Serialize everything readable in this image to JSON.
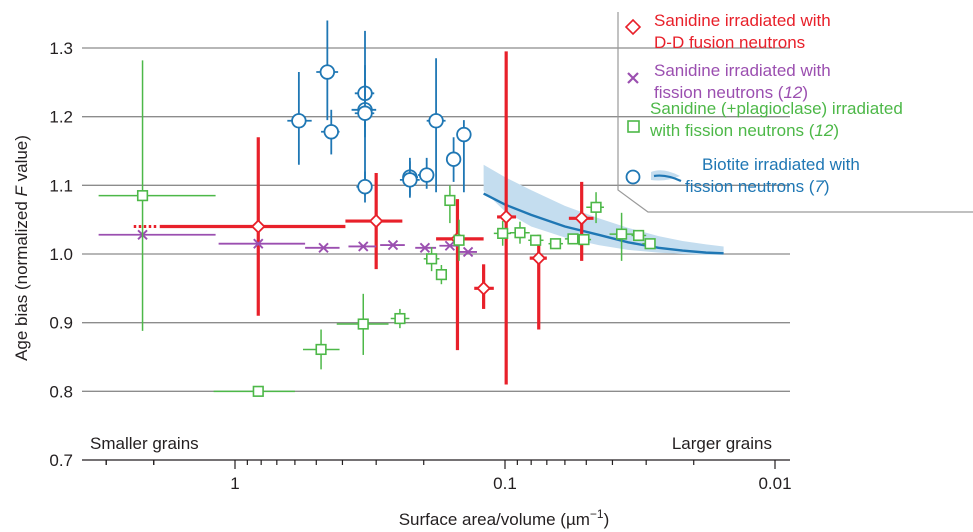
{
  "chart_data": {
    "type": "scatter",
    "xlabel": "Surface area/volume (µm⁻¹)",
    "ylabel": "Age bias (normalized F value)",
    "x_scale": "log",
    "x_reversed": true,
    "xlim": [
      3.2,
      0.0085
    ],
    "ylim": [
      0.7,
      1.35
    ],
    "x_ticks": [
      {
        "value": 1,
        "label": "1"
      },
      {
        "value": 0.1,
        "label": "0.1"
      },
      {
        "value": 0.01,
        "label": "0.01"
      }
    ],
    "y_ticks": [
      0.7,
      0.8,
      0.9,
      1.0,
      1.1,
      1.2,
      1.3
    ],
    "y_tick_labels": [
      "0.7",
      "0.8",
      "0.9",
      "1.0",
      "1.1",
      "1.2",
      "1.3"
    ],
    "grid": "horizontal",
    "annotations": {
      "left": "Smaller grains",
      "right": "Larger grains"
    },
    "legend": {
      "placement": "top-right",
      "entries": [
        {
          "lines": [
            "Sanidine irradiated with",
            "D-D fusion neutrons"
          ],
          "color": "#e8202a",
          "marker": "diamond"
        },
        {
          "lines": [
            "Sanidine irradiated with",
            "fission neutrons (12)"
          ],
          "color": "#9b4fb0",
          "marker": "x"
        },
        {
          "lines": [
            "Sanidine (+plagioclase) irradiated",
            "with fission neutrons (12)"
          ],
          "color": "#4db848",
          "marker": "square"
        },
        {
          "lines": [
            "Biotite irradiated with",
            "fission neutrons (7)"
          ],
          "color": "#1f77b4",
          "marker": "circle"
        }
      ]
    },
    "series": [
      {
        "name": "Sanidine irradiated with D-D fusion neutrons",
        "color": "#e8202a",
        "marker": "diamond",
        "points": [
          {
            "x": 0.82,
            "y": 1.04,
            "x_lo": 1.9,
            "x_hi": 0.39,
            "y_lo": 0.91,
            "y_hi": 1.17
          },
          {
            "x": 0.3,
            "y": 1.048,
            "x_lo": 0.39,
            "x_hi": 0.24,
            "y_lo": 0.978,
            "y_hi": 1.118
          },
          {
            "x": 0.15,
            "y": 1.022,
            "x_lo": 0.18,
            "x_hi": 0.12,
            "y_lo": 0.86,
            "y_hi": 1.08
          },
          {
            "x": 0.12,
            "y": 0.95,
            "x_lo": 0.13,
            "x_hi": 0.11,
            "y_lo": 0.92,
            "y_hi": 0.985
          },
          {
            "x": 0.099,
            "y": 1.054,
            "x_lo": 0.107,
            "x_hi": 0.091,
            "y_lo": 0.81,
            "y_hi": 1.295
          },
          {
            "x": 0.075,
            "y": 0.994,
            "x_lo": 0.081,
            "x_hi": 0.07,
            "y_lo": 0.89,
            "y_hi": 1.028
          },
          {
            "x": 0.052,
            "y": 1.052,
            "x_lo": 0.058,
            "x_hi": 0.047,
            "y_lo": 0.99,
            "y_hi": 1.105
          }
        ]
      },
      {
        "name": "Sanidine irradiated with fission neutrons (12)",
        "color": "#9b4fb0",
        "marker": "x",
        "points": [
          {
            "x": 2.2,
            "y": 1.028,
            "x_lo": 3.2,
            "x_hi": 1.18
          },
          {
            "x": 0.82,
            "y": 1.015,
            "x_lo": 1.15,
            "x_hi": 0.55
          },
          {
            "x": 0.47,
            "y": 1.009,
            "x_lo": 0.55,
            "x_hi": 0.41
          },
          {
            "x": 0.335,
            "y": 1.011,
            "x_lo": 0.38,
            "x_hi": 0.3
          },
          {
            "x": 0.26,
            "y": 1.013,
            "x_lo": 0.29,
            "x_hi": 0.235
          },
          {
            "x": 0.198,
            "y": 1.009,
            "x_lo": 0.215,
            "x_hi": 0.18
          },
          {
            "x": 0.16,
            "y": 1.012,
            "x_lo": 0.175,
            "x_hi": 0.148
          },
          {
            "x": 0.137,
            "y": 1.003,
            "x_lo": 0.148,
            "x_hi": 0.127
          }
        ]
      },
      {
        "name": "Sanidine (+plagioclase) irradiated with fission neutrons (12)",
        "color": "#4db848",
        "marker": "square",
        "points": [
          {
            "x": 2.2,
            "y": 1.085,
            "x_lo": 3.2,
            "x_hi": 1.18,
            "y_lo": 0.888,
            "y_hi": 1.282
          },
          {
            "x": 0.82,
            "y": 0.8,
            "x_lo": 1.2,
            "x_hi": 0.6
          },
          {
            "x": 0.48,
            "y": 0.861,
            "x_lo": 0.56,
            "x_hi": 0.41,
            "y_lo": 0.832,
            "y_hi": 0.89
          },
          {
            "x": 0.335,
            "y": 0.898,
            "x_lo": 0.42,
            "x_hi": 0.27,
            "y_lo": 0.853,
            "y_hi": 0.942
          },
          {
            "x": 0.245,
            "y": 0.906,
            "x_lo": 0.265,
            "x_hi": 0.226,
            "y_lo": 0.892,
            "y_hi": 0.92
          },
          {
            "x": 0.187,
            "y": 0.993,
            "x_lo": 0.2,
            "x_hi": 0.175,
            "y_lo": 0.975,
            "y_hi": 1.01
          },
          {
            "x": 0.172,
            "y": 0.97,
            "x_lo": 0.178,
            "x_hi": 0.166,
            "y_lo": 0.956,
            "y_hi": 0.984
          },
          {
            "x": 0.16,
            "y": 1.078,
            "x_lo": 0.165,
            "x_hi": 0.155,
            "y_lo": 1.045,
            "y_hi": 1.1
          },
          {
            "x": 0.148,
            "y": 1.02,
            "x_lo": 0.155,
            "x_hi": 0.142,
            "y_lo": 0.99,
            "y_hi": 1.05
          },
          {
            "x": 0.102,
            "y": 1.03,
            "x_lo": 0.11,
            "x_hi": 0.095,
            "y_lo": 1.012,
            "y_hi": 1.048
          },
          {
            "x": 0.088,
            "y": 1.031,
            "x_lo": 0.096,
            "x_hi": 0.081,
            "y_lo": 1.015,
            "y_hi": 1.047
          },
          {
            "x": 0.077,
            "y": 1.02,
            "x_lo": 0.082,
            "x_hi": 0.072
          },
          {
            "x": 0.065,
            "y": 1.015,
            "x_lo": 0.069,
            "x_hi": 0.061
          },
          {
            "x": 0.056,
            "y": 1.022,
            "x_lo": 0.06,
            "x_hi": 0.052
          },
          {
            "x": 0.051,
            "y": 1.021,
            "x_lo": 0.054,
            "x_hi": 0.048
          },
          {
            "x": 0.046,
            "y": 1.068,
            "x_lo": 0.05,
            "x_hi": 0.043,
            "y_lo": 1.045,
            "y_hi": 1.09
          },
          {
            "x": 0.037,
            "y": 1.029,
            "x_lo": 0.041,
            "x_hi": 0.033,
            "y_lo": 0.99,
            "y_hi": 1.06
          },
          {
            "x": 0.032,
            "y": 1.027,
            "x_lo": 0.034,
            "x_hi": 0.03
          },
          {
            "x": 0.029,
            "y": 1.015,
            "x_lo": 0.031,
            "x_hi": 0.028
          }
        ]
      },
      {
        "name": "Biotite irradiated with fission neutrons (7)",
        "color": "#1f77b4",
        "marker": "circle",
        "points": [
          {
            "x": 0.58,
            "y": 1.194,
            "x_lo": 0.64,
            "x_hi": 0.52,
            "y_lo": 1.13,
            "y_hi": 1.265
          },
          {
            "x": 0.455,
            "y": 1.265,
            "x_lo": 0.5,
            "x_hi": 0.415,
            "y_lo": 1.195,
            "y_hi": 1.34
          },
          {
            "x": 0.44,
            "y": 1.178,
            "x_lo": 0.48,
            "x_hi": 0.41,
            "y_lo": 1.145,
            "y_hi": 1.21
          },
          {
            "x": 0.33,
            "y": 1.234,
            "x_lo": 0.36,
            "x_hi": 0.305,
            "y_lo": 1.185,
            "y_hi": 1.275
          },
          {
            "x": 0.33,
            "y": 1.21,
            "x_lo": 0.37,
            "x_hi": 0.3,
            "y_lo": 1.17,
            "y_hi": 1.255
          },
          {
            "x": 0.33,
            "y": 1.205,
            "x_lo": 0.36,
            "x_hi": 0.305,
            "y_lo": 1.085,
            "y_hi": 1.325
          },
          {
            "x": 0.33,
            "y": 1.098,
            "x_lo": 0.355,
            "x_hi": 0.31,
            "y_lo": 1.075,
            "y_hi": 1.12
          },
          {
            "x": 0.225,
            "y": 1.112,
            "x_lo": 0.24,
            "x_hi": 0.21,
            "y_lo": 1.085,
            "y_hi": 1.14
          },
          {
            "x": 0.225,
            "y": 1.108,
            "x_lo": 0.245,
            "x_hi": 0.207,
            "y_lo": 1.082,
            "y_hi": 1.135
          },
          {
            "x": 0.195,
            "y": 1.115,
            "x_lo": 0.21,
            "x_hi": 0.183,
            "y_lo": 1.095,
            "y_hi": 1.14
          },
          {
            "x": 0.18,
            "y": 1.194,
            "x_lo": 0.195,
            "x_hi": 0.166,
            "y_lo": 1.09,
            "y_hi": 1.285
          },
          {
            "x": 0.155,
            "y": 1.138,
            "x_lo": 0.164,
            "x_hi": 0.148,
            "y_lo": 1.105,
            "y_hi": 1.17
          },
          {
            "x": 0.142,
            "y": 1.174,
            "x_lo": 0.15,
            "x_hi": 0.135,
            "y_lo": 1.09,
            "y_hi": 1.195
          }
        ]
      }
    ],
    "model_curve": {
      "color": "#1f77b4",
      "x": [
        0.12,
        0.1,
        0.08,
        0.06,
        0.045,
        0.035,
        0.027,
        0.022,
        0.018,
        0.0155
      ],
      "y": [
        1.088,
        1.072,
        1.057,
        1.04,
        1.028,
        1.017,
        1.009,
        1.005,
        1.002,
        1.001
      ],
      "band_upper": [
        1.13,
        1.112,
        1.093,
        1.07,
        1.052,
        1.038,
        1.026,
        1.019,
        1.014,
        1.011
      ],
      "band_lower": [
        1.092,
        1.062,
        1.04,
        1.024,
        1.013,
        1.006,
        1.002,
        1.0,
        0.999,
        0.999
      ]
    }
  }
}
